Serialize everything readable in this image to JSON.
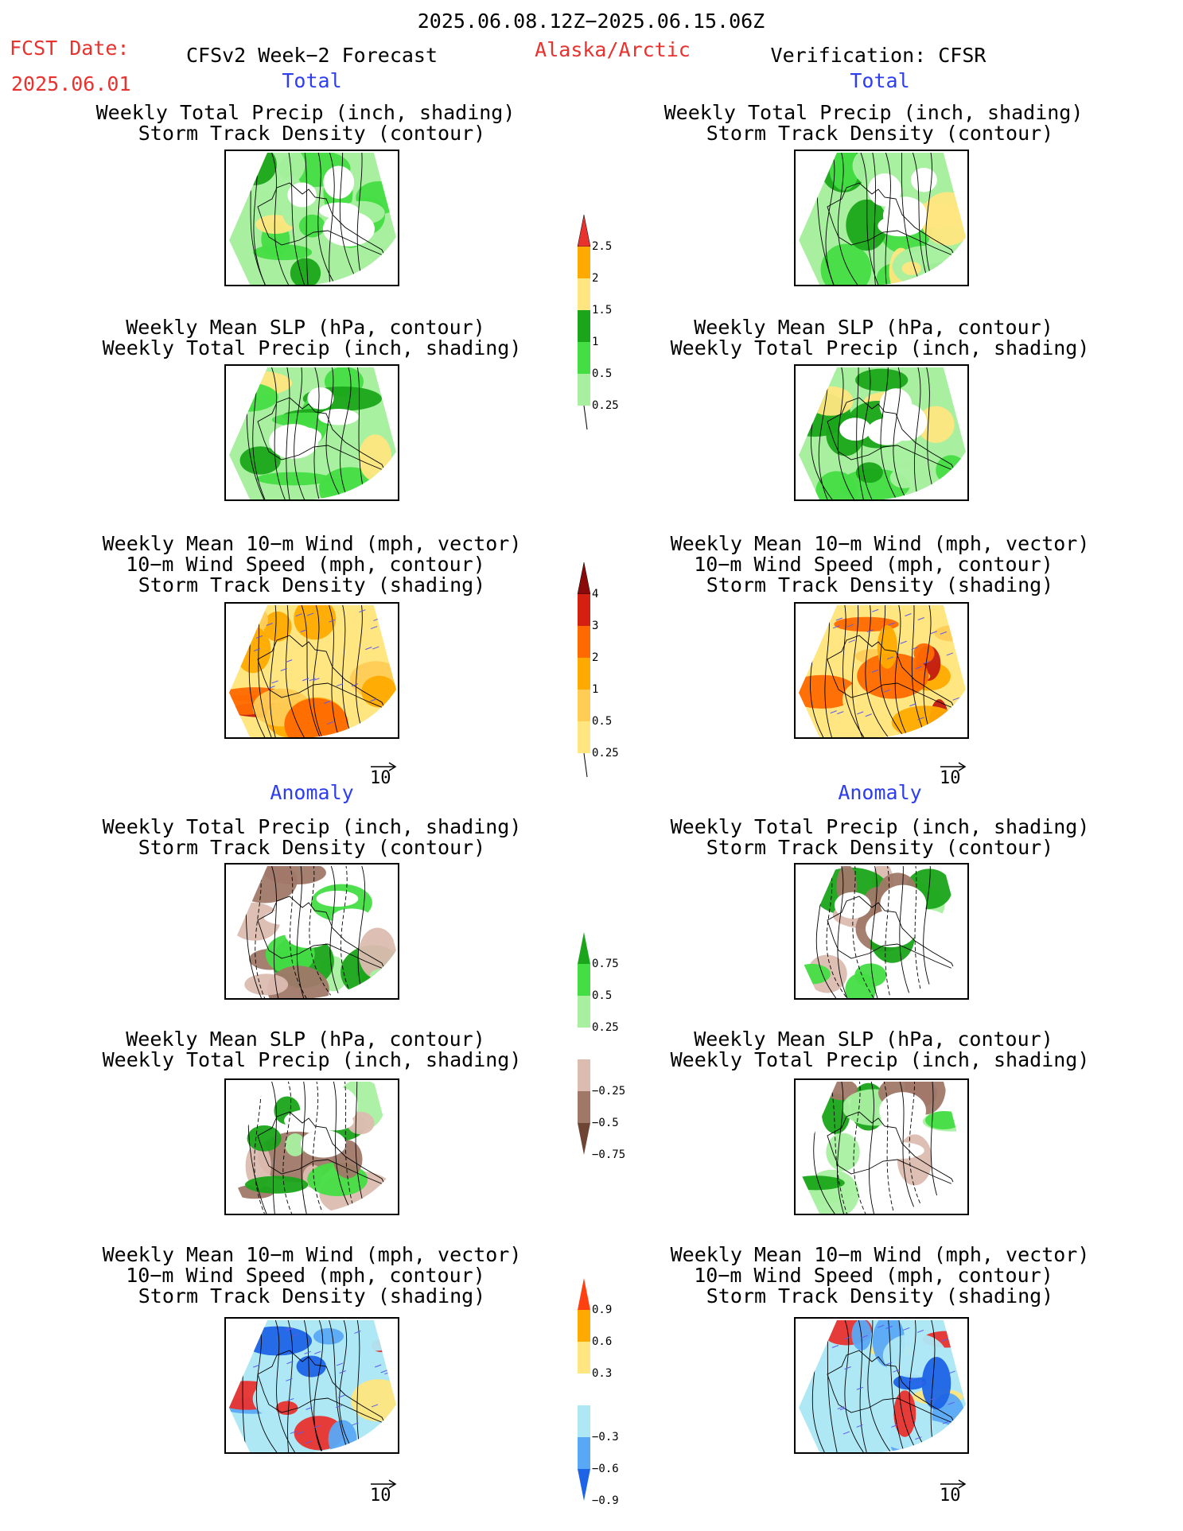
{
  "header": {
    "period": "2025.06.08.12Z−2025.06.15.06Z",
    "fcst_label": "FCST Date:",
    "fcst_date": "2025.06.01",
    "model": "CFSv2 Week−2 Forecast",
    "region": "Alaska/Arctic",
    "verification": "Verification: CFSR"
  },
  "sections": {
    "total": "Total",
    "anomaly": "Anomaly"
  },
  "titles": {
    "precip_std": [
      "Weekly Total Precip (inch, shading)",
      "Storm Track Density (contour)"
    ],
    "slp_precip": [
      "Weekly Mean SLP (hPa, contour)",
      "Weekly Total Precip (inch, shading)"
    ],
    "wind_std": [
      "Weekly Mean 10−m Wind (mph, vector)",
      "10−m Wind Speed (mph, contour)",
      "Storm Track Density (shading)"
    ]
  },
  "vector_ref": "10",
  "colors": {
    "green_light": "#a8f0a0",
    "green_mid": "#44dd44",
    "green_dark": "#1aa51a",
    "yellow": "#ffe680",
    "orange": "#ffaa00",
    "red": "#e8322e",
    "brown_light": "#dcbcb0",
    "brown_mid": "#a07868",
    "brown_dark": "#6e4434",
    "blue_light": "#aee8f5",
    "blue_mid": "#5aa8f5",
    "blue_dark": "#1e64e6",
    "title_red": "#e8322e",
    "title_blue": "#2d3df0"
  },
  "chart_data": [
    {
      "type": "heatmap",
      "name": "colorbar-precip-total",
      "levels": [
        "0.25",
        "0.5",
        "1",
        "1.5",
        "2",
        "2.5"
      ]
    },
    {
      "type": "heatmap",
      "name": "colorbar-storm-density-total",
      "levels": [
        "0.25",
        "0.5",
        "1",
        "2",
        "3",
        "4"
      ]
    },
    {
      "type": "heatmap",
      "name": "colorbar-precip-anomaly",
      "levels": [
        "0.75",
        "0.5",
        "0.25",
        "−0.25",
        "−0.5",
        "−0.75"
      ]
    },
    {
      "type": "heatmap",
      "name": "colorbar-storm-density-anomaly",
      "levels": [
        "0.9",
        "0.6",
        "0.3",
        "−0.3",
        "−0.6",
        "−0.9"
      ]
    }
  ]
}
